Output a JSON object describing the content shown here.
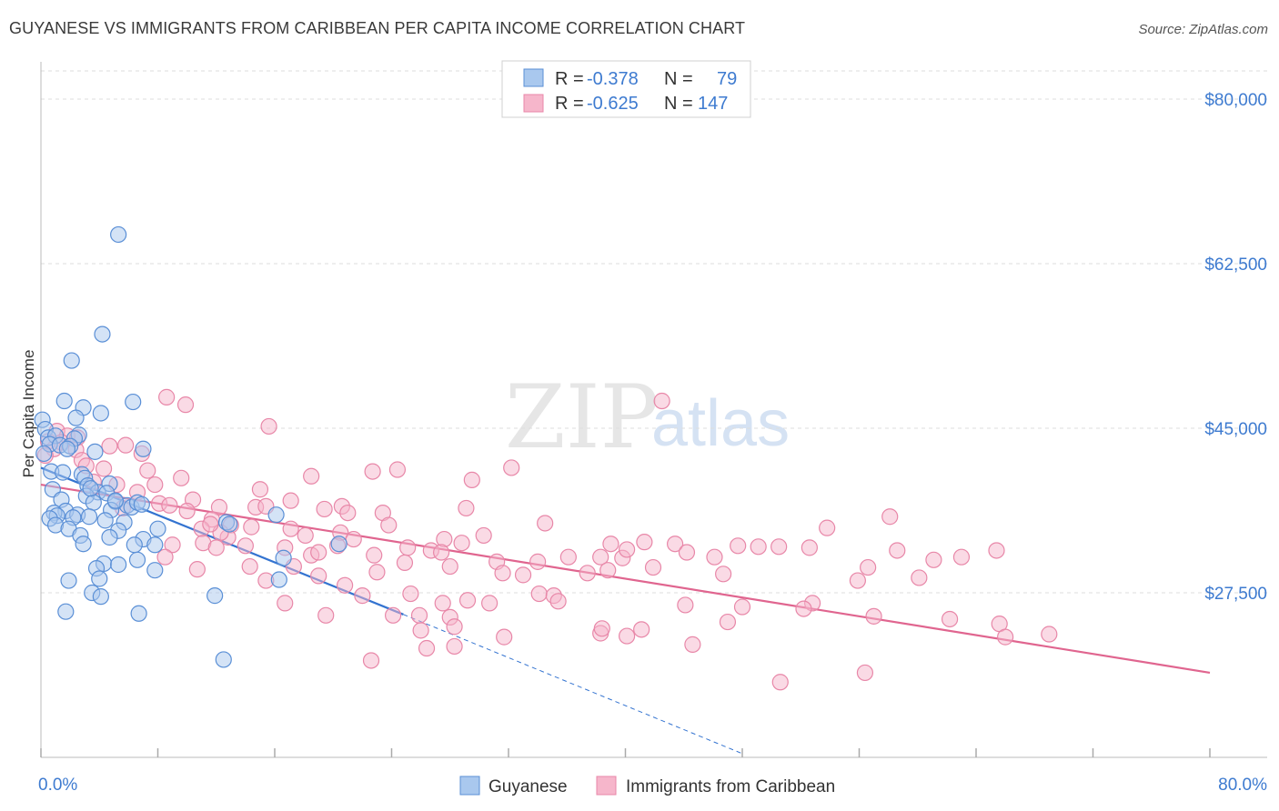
{
  "title": "GUYANESE VS IMMIGRANTS FROM CARIBBEAN PER CAPITA INCOME CORRELATION CHART",
  "source": "Source: ZipAtlas.com",
  "watermark": {
    "zip": "ZIP",
    "atlas": "atlas"
  },
  "colors": {
    "guyanese_fill": "#a9c8ee",
    "guyanese_stroke": "#5a8fd6",
    "guyanese_line": "#3373d0",
    "caribbean_fill": "#f6b6cb",
    "caribbean_stroke": "#e887a8",
    "caribbean_line": "#e0658f",
    "tick_text": "#3e7bd0",
    "grid": "#dddddd"
  },
  "legend": {
    "rows": [
      {
        "r_label": "R =",
        "r_value": "-0.378",
        "n_label": "N =",
        "n_value": "79"
      },
      {
        "r_label": "R =",
        "r_value": "-0.625",
        "n_label": "N =",
        "n_value": "147"
      }
    ]
  },
  "bottom_legend": [
    "Guyanese",
    "Immigrants from Caribbean"
  ],
  "chart_data": {
    "type": "scatter",
    "title": "GUYANESE VS IMMIGRANTS FROM CARIBBEAN PER CAPITA INCOME CORRELATION CHART",
    "xlabel": "",
    "ylabel": "Per Capita Income",
    "xlim": [
      0,
      80
    ],
    "ylim": [
      10000,
      83000
    ],
    "x_tick_labels": [
      "0.0%",
      "80.0%"
    ],
    "y_ticks": [
      27500,
      45000,
      62500,
      80000
    ],
    "y_tick_labels": [
      "$27,500",
      "$45,000",
      "$62,500",
      "$80,000"
    ],
    "grid": true,
    "series": [
      {
        "name": "Guyanese",
        "r": -0.378,
        "n": 79,
        "trend": {
          "x0": 0,
          "y0": 40800,
          "x1": 24.8,
          "y1": 25200,
          "dash_to_x": 48,
          "dash_to_y": 10400
        },
        "points": [
          [
            5.3,
            65600
          ],
          [
            4.2,
            55000
          ],
          [
            2.1,
            52200
          ],
          [
            1.6,
            47900
          ],
          [
            2.9,
            47200
          ],
          [
            6.3,
            47800
          ],
          [
            4.1,
            46600
          ],
          [
            2.4,
            46100
          ],
          [
            0.1,
            45900
          ],
          [
            0.3,
            44900
          ],
          [
            0.5,
            44000
          ],
          [
            1.0,
            44200
          ],
          [
            2.6,
            44300
          ],
          [
            2.3,
            43900
          ],
          [
            0.6,
            43300
          ],
          [
            1.3,
            43200
          ],
          [
            2.0,
            43100
          ],
          [
            1.8,
            42800
          ],
          [
            3.7,
            42500
          ],
          [
            7.0,
            42800
          ],
          [
            0.2,
            42300
          ],
          [
            0.7,
            40400
          ],
          [
            1.5,
            40300
          ],
          [
            2.8,
            40100
          ],
          [
            3.0,
            39700
          ],
          [
            4.7,
            39100
          ],
          [
            3.2,
            38900
          ],
          [
            0.8,
            38500
          ],
          [
            3.9,
            38200
          ],
          [
            3.1,
            37800
          ],
          [
            4.5,
            38100
          ],
          [
            1.4,
            37400
          ],
          [
            3.6,
            37100
          ],
          [
            5.1,
            37200
          ],
          [
            5.9,
            36800
          ],
          [
            6.2,
            36600
          ],
          [
            4.8,
            36300
          ],
          [
            1.7,
            36200
          ],
          [
            0.9,
            36000
          ],
          [
            2.5,
            35800
          ],
          [
            1.1,
            35700
          ],
          [
            2.2,
            35500
          ],
          [
            0.6,
            35400
          ],
          [
            3.3,
            35600
          ],
          [
            4.4,
            35200
          ],
          [
            5.7,
            35000
          ],
          [
            12.7,
            35000
          ],
          [
            1.0,
            34700
          ],
          [
            1.9,
            34300
          ],
          [
            5.3,
            34100
          ],
          [
            8.0,
            34300
          ],
          [
            2.7,
            33600
          ],
          [
            4.7,
            33400
          ],
          [
            7.0,
            33200
          ],
          [
            2.9,
            32700
          ],
          [
            6.4,
            32600
          ],
          [
            7.8,
            32600
          ],
          [
            20.4,
            32700
          ],
          [
            6.6,
            31000
          ],
          [
            4.3,
            30600
          ],
          [
            5.3,
            30500
          ],
          [
            16.6,
            31200
          ],
          [
            3.8,
            30100
          ],
          [
            7.8,
            29900
          ],
          [
            4.0,
            29000
          ],
          [
            1.9,
            28800
          ],
          [
            16.3,
            28900
          ],
          [
            11.9,
            27200
          ],
          [
            3.5,
            27500
          ],
          [
            1.7,
            25500
          ],
          [
            6.7,
            25300
          ],
          [
            12.5,
            20400
          ],
          [
            4.1,
            27100
          ],
          [
            6.6,
            37100
          ],
          [
            3.4,
            38600
          ],
          [
            5.1,
            37300
          ],
          [
            6.9,
            36900
          ],
          [
            16.1,
            35800
          ],
          [
            12.9,
            34800
          ]
        ]
      },
      {
        "name": "Immigrants from Caribbean",
        "r": -0.625,
        "n": 147,
        "trend": {
          "x0": 0,
          "y0": 39000,
          "x1": 80,
          "y1": 19000
        },
        "points": [
          [
            8.6,
            48300
          ],
          [
            9.9,
            47500
          ],
          [
            42.5,
            47900
          ],
          [
            15.6,
            45200
          ],
          [
            1.1,
            44700
          ],
          [
            1.8,
            44200
          ],
          [
            2.5,
            44000
          ],
          [
            4.7,
            43100
          ],
          [
            5.8,
            43200
          ],
          [
            0.5,
            43600
          ],
          [
            1.4,
            43500
          ],
          [
            0.9,
            42800
          ],
          [
            2.4,
            42700
          ],
          [
            0.3,
            42100
          ],
          [
            6.9,
            42300
          ],
          [
            2.8,
            41600
          ],
          [
            3.1,
            41000
          ],
          [
            4.3,
            40700
          ],
          [
            7.3,
            40500
          ],
          [
            24.4,
            40600
          ],
          [
            22.7,
            40400
          ],
          [
            32.2,
            40800
          ],
          [
            18.5,
            39900
          ],
          [
            9.6,
            39700
          ],
          [
            29.5,
            39500
          ],
          [
            3.6,
            39300
          ],
          [
            5.2,
            39000
          ],
          [
            7.8,
            39000
          ],
          [
            15.0,
            38500
          ],
          [
            6.6,
            38200
          ],
          [
            17.1,
            37300
          ],
          [
            10.4,
            37400
          ],
          [
            12.2,
            36600
          ],
          [
            8.1,
            37000
          ],
          [
            8.8,
            36800
          ],
          [
            5.6,
            36500
          ],
          [
            14.7,
            36600
          ],
          [
            15.4,
            36700
          ],
          [
            19.4,
            36400
          ],
          [
            10.0,
            36200
          ],
          [
            20.6,
            36700
          ],
          [
            21.0,
            36000
          ],
          [
            23.4,
            36000
          ],
          [
            29.1,
            36500
          ],
          [
            11.7,
            35300
          ],
          [
            13.0,
            34700
          ],
          [
            12.8,
            33400
          ],
          [
            14.4,
            34500
          ],
          [
            17.1,
            34300
          ],
          [
            18.1,
            33600
          ],
          [
            20.5,
            33900
          ],
          [
            21.4,
            33200
          ],
          [
            23.8,
            34700
          ],
          [
            27.6,
            33200
          ],
          [
            30.3,
            33600
          ],
          [
            34.5,
            34900
          ],
          [
            11.0,
            34300
          ],
          [
            12.3,
            33900
          ],
          [
            14.0,
            32500
          ],
          [
            16.7,
            32300
          ],
          [
            18.5,
            31500
          ],
          [
            19.0,
            31800
          ],
          [
            20.3,
            32500
          ],
          [
            22.8,
            31500
          ],
          [
            25.1,
            32300
          ],
          [
            26.7,
            32000
          ],
          [
            27.4,
            31800
          ],
          [
            28.8,
            32800
          ],
          [
            31.2,
            30800
          ],
          [
            34.0,
            30800
          ],
          [
            36.1,
            31300
          ],
          [
            38.3,
            31300
          ],
          [
            39.0,
            32700
          ],
          [
            39.8,
            31200
          ],
          [
            40.1,
            32100
          ],
          [
            41.3,
            32900
          ],
          [
            41.9,
            30200
          ],
          [
            43.4,
            32700
          ],
          [
            44.2,
            31800
          ],
          [
            46.1,
            31300
          ],
          [
            47.7,
            32500
          ],
          [
            49.1,
            32400
          ],
          [
            50.5,
            32400
          ],
          [
            52.6,
            32300
          ],
          [
            53.8,
            34400
          ],
          [
            58.1,
            35600
          ],
          [
            58.6,
            32000
          ],
          [
            56.6,
            30200
          ],
          [
            61.1,
            31000
          ],
          [
            63.0,
            31300
          ],
          [
            65.4,
            32000
          ],
          [
            9.0,
            32600
          ],
          [
            11.1,
            32800
          ],
          [
            12.0,
            32300
          ],
          [
            14.3,
            30300
          ],
          [
            10.7,
            30000
          ],
          [
            8.5,
            31300
          ],
          [
            17.3,
            30300
          ],
          [
            19.0,
            29300
          ],
          [
            23.0,
            29700
          ],
          [
            24.9,
            30700
          ],
          [
            28.0,
            30300
          ],
          [
            31.6,
            29600
          ],
          [
            33.0,
            29400
          ],
          [
            37.4,
            29600
          ],
          [
            38.8,
            29900
          ],
          [
            46.7,
            29500
          ],
          [
            55.9,
            28800
          ],
          [
            60.1,
            29100
          ],
          [
            15.4,
            28800
          ],
          [
            20.8,
            28300
          ],
          [
            22.0,
            27200
          ],
          [
            25.3,
            27400
          ],
          [
            27.5,
            26400
          ],
          [
            29.2,
            26700
          ],
          [
            30.7,
            26400
          ],
          [
            34.1,
            27400
          ],
          [
            35.1,
            27200
          ],
          [
            35.4,
            26600
          ],
          [
            44.1,
            26200
          ],
          [
            48.0,
            26000
          ],
          [
            52.8,
            26400
          ],
          [
            11.6,
            34800
          ],
          [
            16.7,
            26400
          ],
          [
            19.5,
            25100
          ],
          [
            24.1,
            25100
          ],
          [
            25.9,
            25100
          ],
          [
            28.0,
            24900
          ],
          [
            26.0,
            23500
          ],
          [
            28.3,
            23900
          ],
          [
            31.7,
            22800
          ],
          [
            38.3,
            23200
          ],
          [
            38.4,
            23700
          ],
          [
            40.1,
            22900
          ],
          [
            41.1,
            23600
          ],
          [
            44.6,
            22000
          ],
          [
            47.0,
            24400
          ],
          [
            52.2,
            25800
          ],
          [
            57.0,
            25000
          ],
          [
            62.2,
            24700
          ],
          [
            65.6,
            24200
          ],
          [
            66.0,
            22800
          ],
          [
            69.0,
            23100
          ],
          [
            26.4,
            21600
          ],
          [
            28.3,
            21800
          ],
          [
            22.6,
            20300
          ],
          [
            50.6,
            18000
          ],
          [
            56.4,
            19000
          ]
        ]
      }
    ]
  }
}
